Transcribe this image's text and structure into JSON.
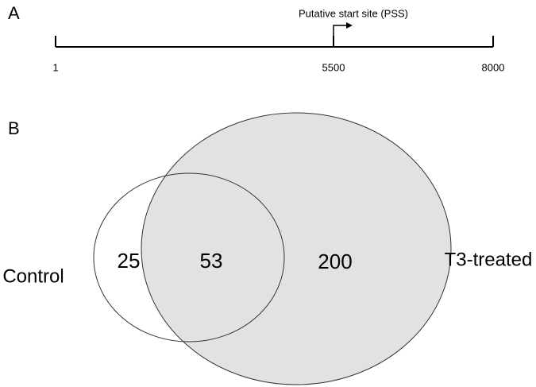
{
  "panel_a": {
    "label": "A",
    "annotation": "Putative start site (PSS)",
    "ticks": [
      1,
      5500,
      8000
    ]
  },
  "panel_b": {
    "label": "B",
    "sets": [
      {
        "name": "Control",
        "only": 25
      },
      {
        "name": "T3-treated",
        "only": 200
      }
    ],
    "overlap": 53
  }
}
